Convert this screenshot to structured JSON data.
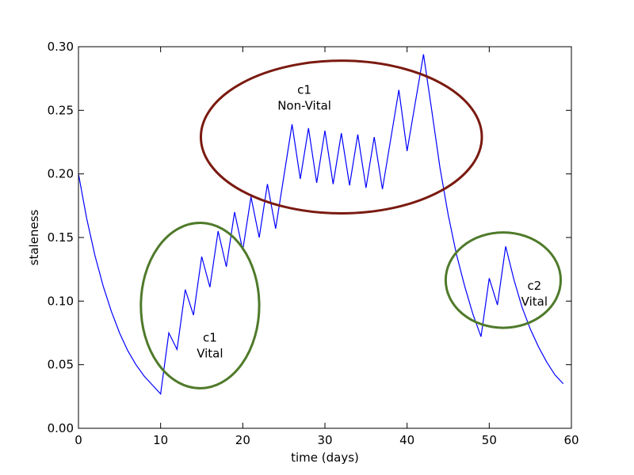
{
  "chart_data": {
    "type": "line",
    "xlabel": "time (days)",
    "ylabel": "staleness",
    "xlim": [
      0,
      60
    ],
    "ylim": [
      0,
      0.3
    ],
    "xticks": [
      "0",
      "10",
      "20",
      "30",
      "40",
      "50",
      "60"
    ],
    "yticks": [
      "0.00",
      "0.05",
      "0.10",
      "0.15",
      "0.20",
      "0.25",
      "0.30"
    ],
    "grid": false,
    "series": [
      {
        "color": "#0000ff",
        "x": [
          0,
          1,
          2,
          3,
          4,
          5,
          6,
          7,
          8,
          9,
          10,
          11,
          12,
          13,
          14,
          15,
          16,
          17,
          18,
          19,
          20,
          21,
          22,
          23,
          24,
          25,
          26,
          27,
          28,
          29,
          30,
          31,
          32,
          33,
          34,
          35,
          36,
          37,
          38,
          39,
          40,
          41,
          42,
          43,
          44,
          45,
          46,
          47,
          48,
          49,
          50,
          51,
          52,
          53,
          54,
          55,
          56,
          57,
          58,
          59
        ],
        "y": [
          0.2,
          0.165,
          0.136,
          0.112,
          0.092,
          0.075,
          0.061,
          0.05,
          0.041,
          0.034,
          0.027,
          0.075,
          0.062,
          0.109,
          0.089,
          0.135,
          0.111,
          0.155,
          0.127,
          0.17,
          0.14,
          0.182,
          0.15,
          0.192,
          0.157,
          0.198,
          0.239,
          0.196,
          0.236,
          0.193,
          0.234,
          0.192,
          0.232,
          0.191,
          0.231,
          0.189,
          0.229,
          0.188,
          0.227,
          0.266,
          0.218,
          0.256,
          0.294,
          0.25,
          0.205,
          0.168,
          0.137,
          0.112,
          0.09,
          0.072,
          0.118,
          0.097,
          0.143,
          0.117,
          0.095,
          0.078,
          0.064,
          0.052,
          0.042,
          0.035
        ]
      }
    ],
    "annotations": [
      {
        "lines": [
          "c1",
          "Vital"
        ],
        "x": 16,
        "y": 0.068,
        "ellipse": {
          "cx": 14.8,
          "cy": 0.0965,
          "rx": 7.2,
          "ry": 0.065,
          "color": "#4f7a2a"
        }
      },
      {
        "lines": [
          "c1",
          "Non-Vital"
        ],
        "x": 27.5,
        "y": 0.263,
        "ellipse": {
          "cx": 32.0,
          "cy": 0.229,
          "rx": 17.1,
          "ry": 0.06,
          "color": "#7a1a10"
        }
      },
      {
        "lines": [
          "c2",
          "Vital"
        ],
        "x": 55.5,
        "y": 0.109,
        "ellipse": {
          "cx": 51.7,
          "cy": 0.1165,
          "rx": 7.0,
          "ry": 0.0375,
          "color": "#4f7a2a"
        }
      }
    ]
  }
}
